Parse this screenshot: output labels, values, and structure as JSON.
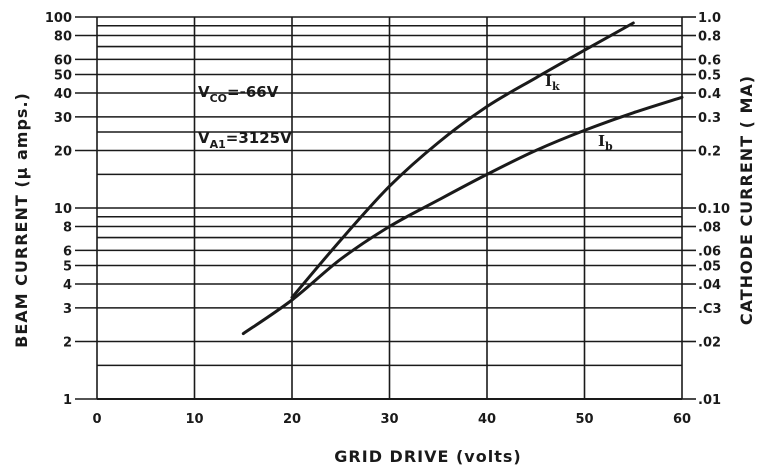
{
  "chart_data": {
    "type": "line",
    "x_axis": {
      "label": "GRID DRIVE (volts)",
      "range": [
        0,
        60
      ],
      "ticks": [
        {
          "value": 0,
          "label": "0"
        },
        {
          "value": 10,
          "label": "10"
        },
        {
          "value": 20,
          "label": "20"
        },
        {
          "value": 30,
          "label": "30"
        },
        {
          "value": 40,
          "label": "40"
        },
        {
          "value": 50,
          "label": "50"
        },
        {
          "value": 60,
          "label": "60"
        }
      ]
    },
    "y_left": {
      "label": "BEAM CURRENT (μ amps.)",
      "scale": "log",
      "range": [
        1,
        100
      ],
      "ticks": [
        {
          "value": 1,
          "label": "1"
        },
        {
          "value": 2,
          "label": "2"
        },
        {
          "value": 3,
          "label": "3"
        },
        {
          "value": 4,
          "label": "4"
        },
        {
          "value": 5,
          "label": "5"
        },
        {
          "value": 6,
          "label": "6"
        },
        {
          "value": 8,
          "label": "8"
        },
        {
          "value": 10,
          "label": "10"
        },
        {
          "value": 20,
          "label": "20"
        },
        {
          "value": 30,
          "label": "30"
        },
        {
          "value": 40,
          "label": "40"
        },
        {
          "value": 50,
          "label": "50"
        },
        {
          "value": 60,
          "label": "60"
        },
        {
          "value": 80,
          "label": "80"
        },
        {
          "value": 100,
          "label": "100"
        }
      ]
    },
    "y_right": {
      "label": "CATHODE CURRENT ( MA)",
      "scale": "log",
      "range": [
        0.01,
        1.0
      ],
      "ticks": [
        {
          "value": 0.01,
          "label": ".01"
        },
        {
          "value": 0.02,
          "label": ".02"
        },
        {
          "value": 0.03,
          "label": ".C3"
        },
        {
          "value": 0.04,
          "label": ".04"
        },
        {
          "value": 0.05,
          "label": ".05"
        },
        {
          "value": 0.06,
          "label": ".06"
        },
        {
          "value": 0.08,
          "label": ".08"
        },
        {
          "value": 0.1,
          "label": "0.10"
        },
        {
          "value": 0.2,
          "label": "0.2"
        },
        {
          "value": 0.3,
          "label": "0.3"
        },
        {
          "value": 0.4,
          "label": "0.4"
        },
        {
          "value": 0.5,
          "label": "0.5"
        },
        {
          "value": 0.6,
          "label": "0.6"
        },
        {
          "value": 0.8,
          "label": "0.8"
        },
        {
          "value": 1.0,
          "label": "1.0"
        }
      ]
    },
    "grid": true,
    "horizontal_grid": [
      1.5,
      2,
      3,
      4,
      5,
      6,
      7,
      8,
      9,
      10,
      15,
      20,
      25,
      30,
      40,
      50,
      60,
      70,
      80,
      90,
      100
    ],
    "series": [
      {
        "name": "I",
        "subscript": "k",
        "axis": "right",
        "points": [
          [
            20,
            0.034
          ],
          [
            25,
            0.068
          ],
          [
            30,
            0.13
          ],
          [
            35,
            0.22
          ],
          [
            40,
            0.34
          ],
          [
            45,
            0.48
          ],
          [
            50,
            0.67
          ],
          [
            55,
            0.93
          ]
        ]
      },
      {
        "name": "I",
        "subscript": "b",
        "axis": "left",
        "points": [
          [
            15,
            2.2
          ],
          [
            20,
            3.3
          ],
          [
            25,
            5.4
          ],
          [
            30,
            8.0
          ],
          [
            35,
            11.0
          ],
          [
            40,
            15.0
          ],
          [
            45,
            20.0
          ],
          [
            50,
            25.5
          ],
          [
            55,
            31.5
          ],
          [
            60,
            38.0
          ]
        ]
      }
    ],
    "annotations": [
      {
        "name": "V",
        "subscript": "CO",
        "rest": "=-66V"
      },
      {
        "name": "V",
        "subscript": "A1",
        "rest": "=3125V"
      }
    ]
  }
}
